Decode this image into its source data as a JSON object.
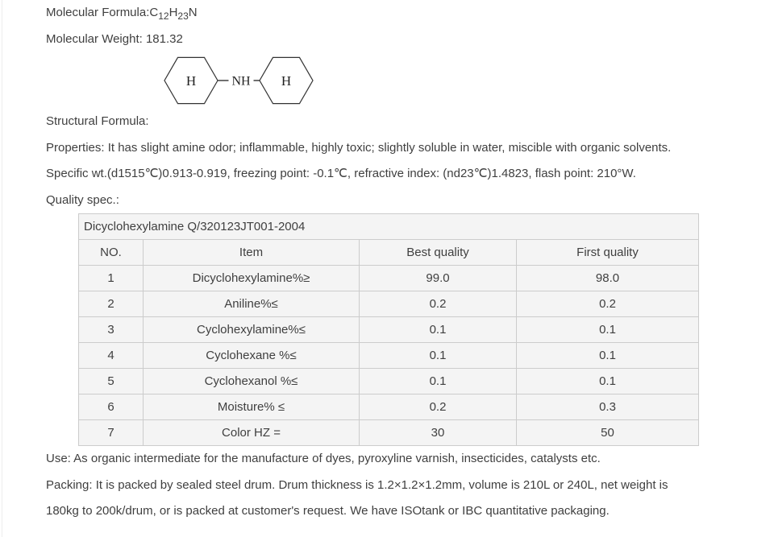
{
  "colors": {
    "text": "#3f3f3f",
    "table_background": "#f4f4f4",
    "table_border": "#cccccc",
    "page_background": "#ffffff"
  },
  "formula": {
    "label": "Molecular Formula:",
    "p1": "C",
    "s1": "12",
    "p2": "H",
    "s2": "23",
    "p3": "N"
  },
  "structure": {
    "left_h": "H",
    "right_h": "H",
    "bridge": "NH"
  },
  "lines": {
    "molecular_weight": "Molecular Weight: 181.32",
    "structural_formula": "Structural Formula:",
    "properties": "Properties: It has slight amine odor; inflammable, highly toxic; slightly soluble in water, miscible with organic solvents.",
    "specific": "Specific wt.(d1515℃)0.913-0.919, freezing point: -0.1℃, refractive index: (nd23℃)1.4823, flash point: 210°W.",
    "quality_spec": "Quality spec.:",
    "use": "Use: As organic intermediate for the manufacture of dyes, pyroxyline varnish, insecticides, catalysts etc.",
    "packing1": "Packing: It is packed by sealed steel drum. Drum thickness is 1.2×1.2×1.2mm, volume is 210L or 240L, net weight is",
    "packing2": "180kg to 200k/drum, or is packed at customer's request. We have ISOtank or IBC quantitative packaging."
  },
  "table": {
    "title": "Dicyclohexylamine Q/320123JT001-2004",
    "headers": [
      "NO.",
      "Item",
      "Best quality",
      "First quality"
    ],
    "rows": [
      [
        "1",
        "Dicyclohexylamine%≥",
        "99.0",
        "98.0"
      ],
      [
        "2",
        "Aniline%≤",
        "0.2",
        "0.2"
      ],
      [
        "3",
        "Cyclohexylamine%≤",
        "0.1",
        "0.1"
      ],
      [
        "4",
        "Cyclohexane %≤",
        "0.1",
        "0.1"
      ],
      [
        "5",
        "Cyclohexanol %≤",
        "0.1",
        "0.1"
      ],
      [
        "6",
        "Moisture% ≤",
        "0.2",
        "0.3"
      ],
      [
        "7",
        "Color HZ =",
        "30",
        "50"
      ]
    ]
  }
}
